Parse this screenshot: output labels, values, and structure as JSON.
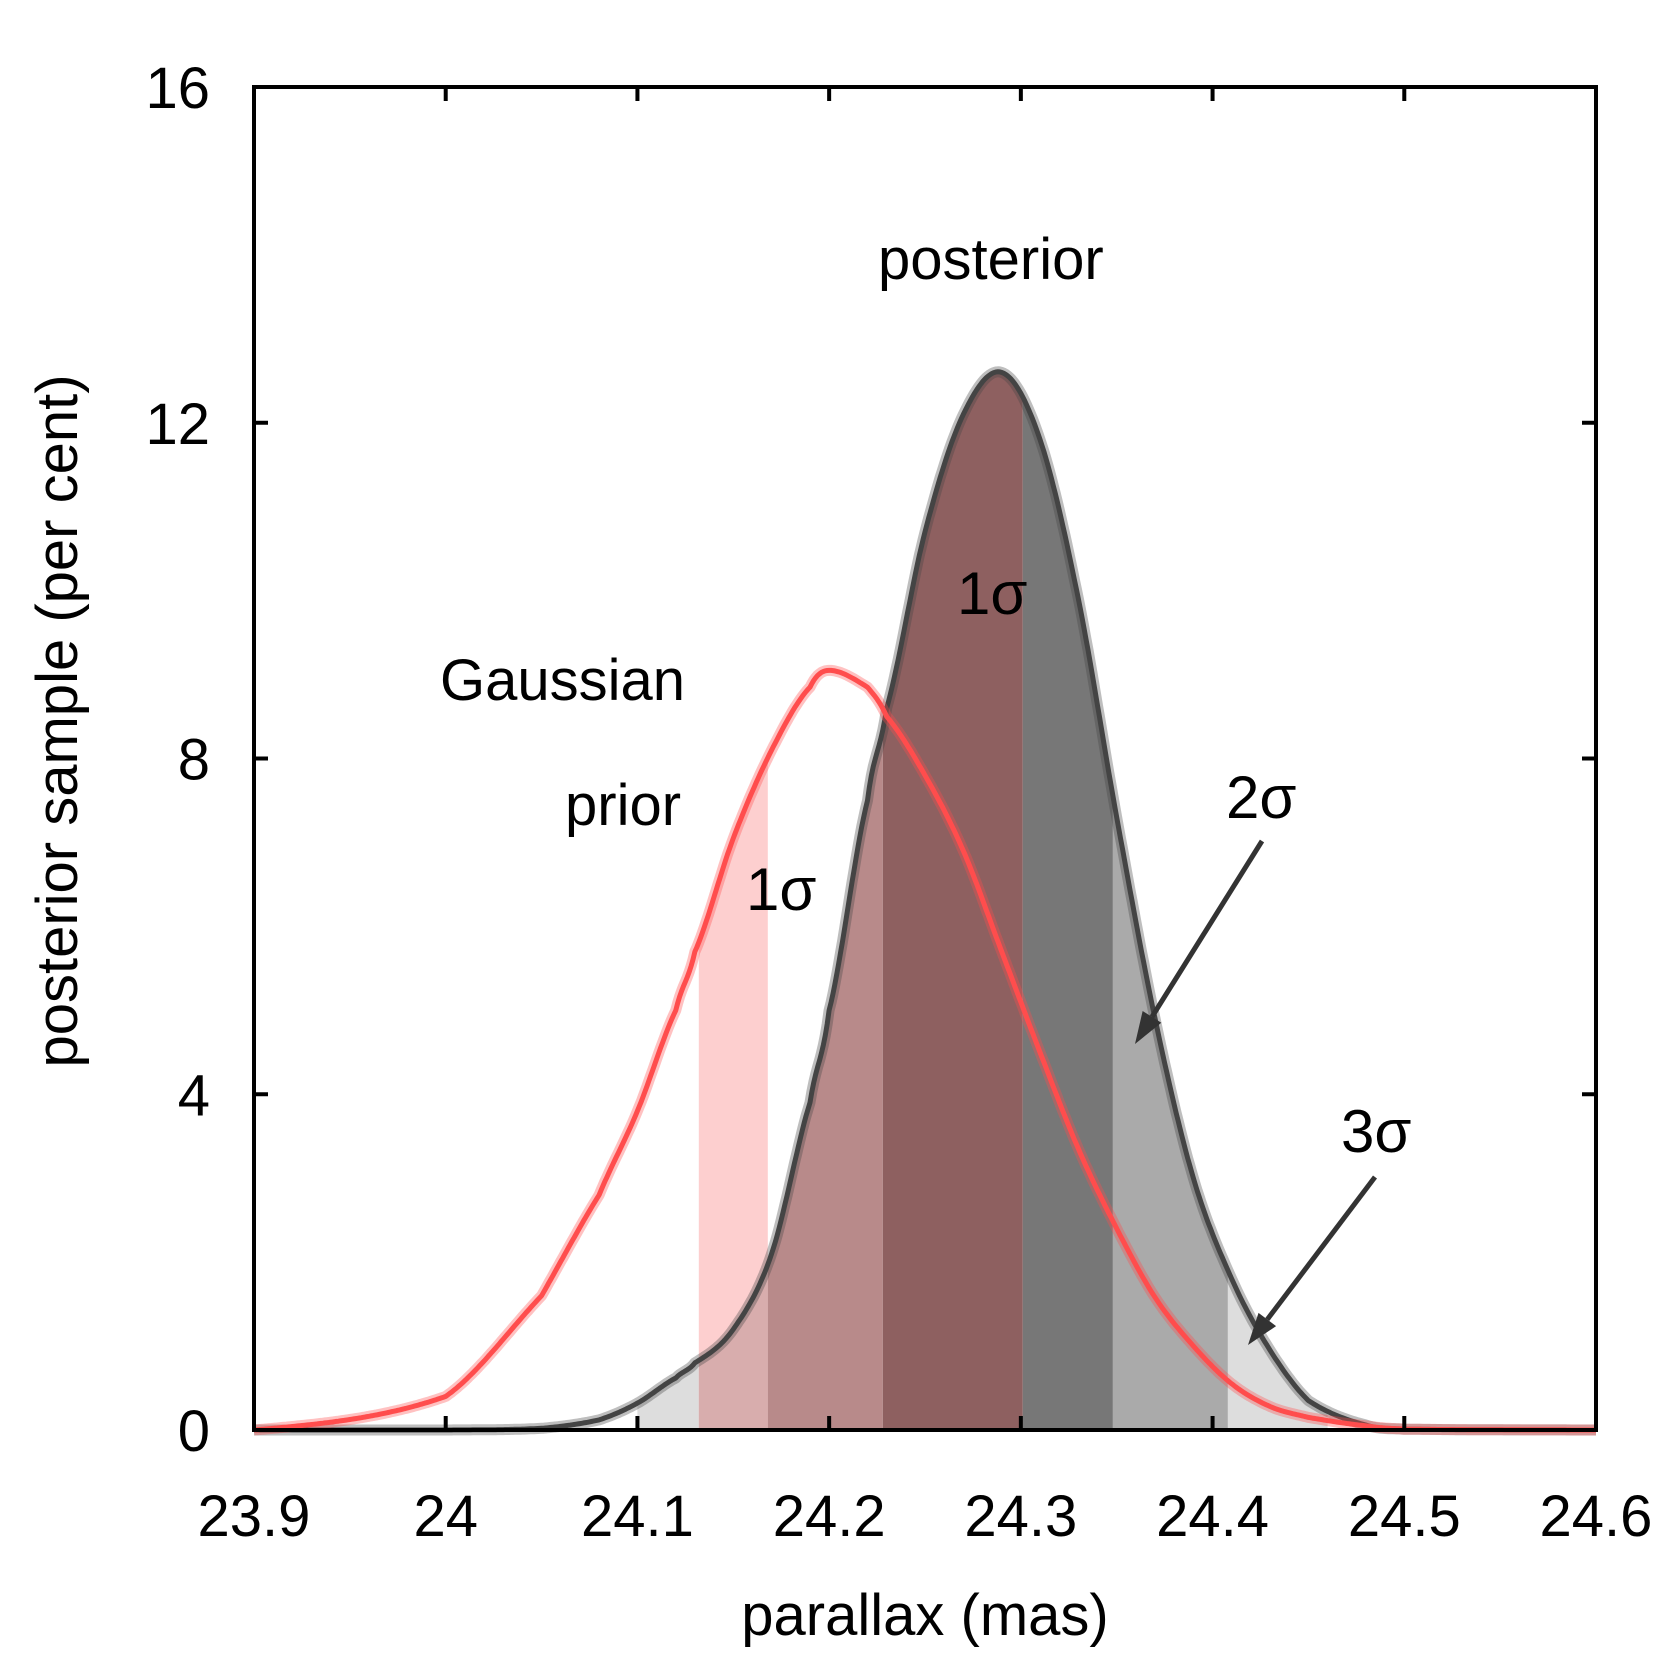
{
  "chart_data": {
    "type": "area",
    "xlabel": "parallax (mas)",
    "ylabel": "posterior sample (per cent)",
    "xlim": [
      23.9,
      24.6
    ],
    "ylim": [
      0,
      16
    ],
    "x_ticks": [
      "23.9",
      "24",
      "24.1",
      "24.2",
      "24.3",
      "24.4",
      "24.5",
      "24.6"
    ],
    "y_ticks": [
      "0",
      "4",
      "8",
      "12",
      "16"
    ],
    "x_tick_values": [
      23.9,
      24.0,
      24.1,
      24.2,
      24.3,
      24.4,
      24.5,
      24.6
    ],
    "y_tick_values": [
      0,
      4,
      8,
      12,
      16
    ],
    "grid": false,
    "series": [
      {
        "name": "posterior",
        "line_color": "#444444",
        "x": [
          23.9,
          24.0,
          24.05,
          24.08,
          24.1,
          24.12,
          24.13,
          24.15,
          24.17,
          24.19,
          24.2,
          24.22,
          24.23,
          24.25,
          24.27,
          24.29,
          24.31,
          24.33,
          24.35,
          24.37,
          24.39,
          24.41,
          24.43,
          24.45,
          24.48,
          24.5,
          24.6
        ],
        "y": [
          0.0,
          0.0,
          0.02,
          0.12,
          0.32,
          0.62,
          0.8,
          1.2,
          2.1,
          3.9,
          5.0,
          7.5,
          8.6,
          10.7,
          12.1,
          12.6,
          11.8,
          9.9,
          7.3,
          4.9,
          3.0,
          1.8,
          0.95,
          0.35,
          0.06,
          0.01,
          0.0
        ]
      },
      {
        "name": "Gaussian prior",
        "line_color": "#ff4d4d",
        "x": [
          23.9,
          24.0,
          24.05,
          24.08,
          24.1,
          24.12,
          24.13,
          24.15,
          24.17,
          24.19,
          24.2,
          24.22,
          24.23,
          24.25,
          24.27,
          24.29,
          24.31,
          24.33,
          24.35,
          24.37,
          24.39,
          24.41,
          24.43,
          24.45,
          24.48,
          24.5,
          24.6
        ],
        "y": [
          0.0,
          0.4,
          1.6,
          2.8,
          3.8,
          5.0,
          5.7,
          7.05,
          8.1,
          8.85,
          9.05,
          8.85,
          8.5,
          7.8,
          6.9,
          5.7,
          4.5,
          3.35,
          2.4,
          1.58,
          1.0,
          0.55,
          0.28,
          0.15,
          0.05,
          0.01,
          0.0
        ]
      }
    ],
    "bands": [
      {
        "series": "Gaussian prior",
        "x0": 24.132,
        "x1": 24.168,
        "fill": "#fdcfcf"
      },
      {
        "series": "posterior",
        "x0": 24.1,
        "x1": 24.132,
        "fill": "#dddddd"
      },
      {
        "series": "posterior",
        "x0": 24.132,
        "x1": 24.168,
        "fill": "#d8adad"
      },
      {
        "series": "posterior",
        "x0": 24.168,
        "x1": 24.228,
        "fill": "#b88a8a"
      },
      {
        "series": "posterior",
        "x0": 24.228,
        "x1": 24.301,
        "fill": "#8e6060"
      },
      {
        "series": "posterior",
        "x0": 24.301,
        "x1": 24.348,
        "fill": "#777777"
      },
      {
        "series": "posterior",
        "x0": 24.348,
        "x1": 24.408,
        "fill": "#aaaaaa"
      },
      {
        "series": "posterior",
        "x0": 24.408,
        "x1": 24.46,
        "fill": "#dddddd"
      }
    ],
    "annotations": {
      "posterior_label": "posterior",
      "posterior_1sigma": "1σ",
      "prior_label_1": "Gaussian",
      "prior_label_2": "prior",
      "prior_1sigma": "1σ",
      "label_2sigma": "2σ",
      "label_3sigma": "3σ"
    }
  }
}
